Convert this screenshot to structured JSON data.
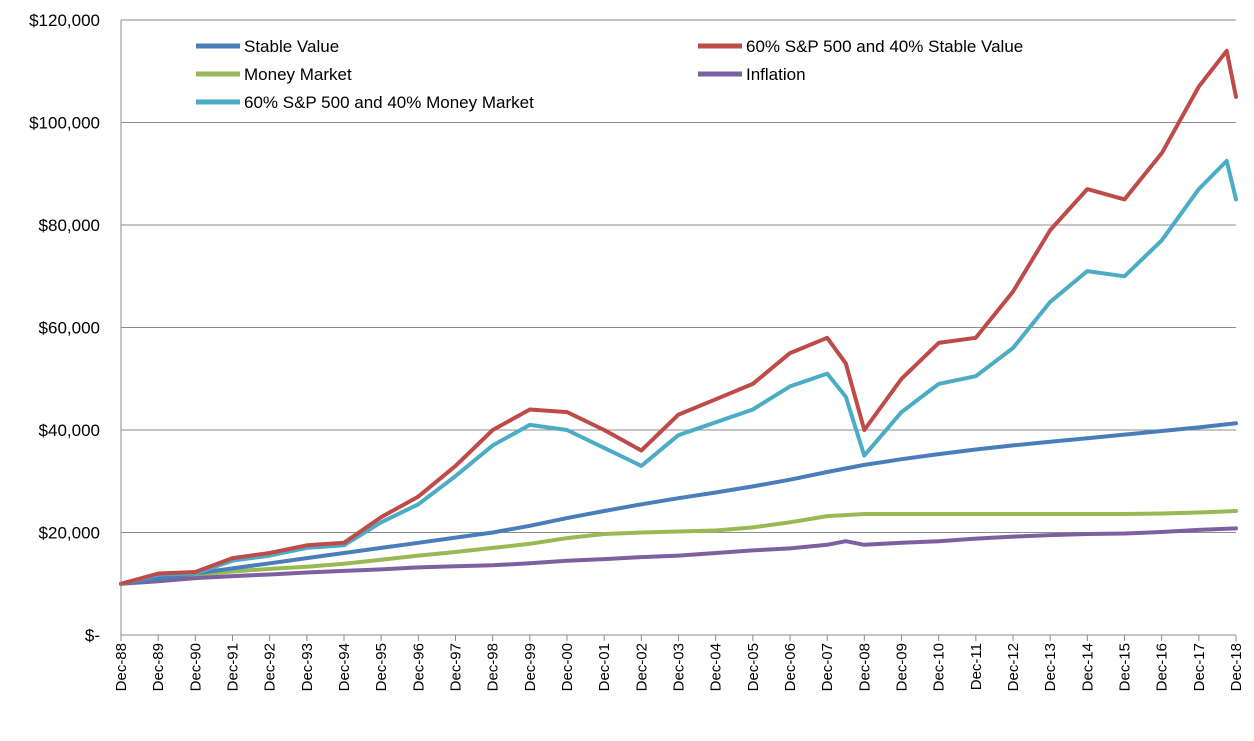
{
  "chart_data": {
    "type": "line",
    "title": "",
    "xlabel": "",
    "ylabel": "",
    "x_start": "Dec-88",
    "x_end": "Dec-18",
    "x_tick_labels": [
      "Dec-88",
      "Dec-89",
      "Dec-90",
      "Dec-91",
      "Dec-92",
      "Dec-93",
      "Dec-94",
      "Dec-95",
      "Dec-96",
      "Dec-97",
      "Dec-98",
      "Dec-99",
      "Dec-00",
      "Dec-01",
      "Dec-02",
      "Dec-03",
      "Dec-04",
      "Dec-05",
      "Dec-06",
      "Dec-07",
      "Dec-08",
      "Dec-09",
      "Dec-10",
      "Dec-11",
      "Dec-12",
      "Dec-13",
      "Dec-14",
      "Dec-15",
      "Dec-16",
      "Dec-17",
      "Dec-18"
    ],
    "ylim": [
      0,
      120000
    ],
    "y_ticks": [
      0,
      20000,
      40000,
      60000,
      80000,
      100000,
      120000
    ],
    "y_tick_labels": [
      "$-",
      "$20,000",
      "$40,000",
      "$60,000",
      "$80,000",
      "$100,000",
      "$120,000"
    ],
    "grid": "horizontal",
    "legend_placement": "top-left",
    "series": [
      {
        "name": "Stable Value",
        "color": "#4a7ebb",
        "points": [
          [
            "Dec-88",
            10000
          ],
          [
            "Dec-89",
            11000
          ],
          [
            "Dec-90",
            12000
          ],
          [
            "Dec-91",
            13000
          ],
          [
            "Dec-92",
            14000
          ],
          [
            "Dec-93",
            15000
          ],
          [
            "Dec-94",
            16000
          ],
          [
            "Dec-95",
            17000
          ],
          [
            "Dec-96",
            18000
          ],
          [
            "Dec-97",
            19000
          ],
          [
            "Dec-98",
            20000
          ],
          [
            "Dec-99",
            21300
          ],
          [
            "Dec-00",
            22800
          ],
          [
            "Dec-01",
            24200
          ],
          [
            "Dec-02",
            25500
          ],
          [
            "Dec-03",
            26700
          ],
          [
            "Dec-04",
            27800
          ],
          [
            "Dec-05",
            29000
          ],
          [
            "Dec-06",
            30300
          ],
          [
            "Dec-07",
            31800
          ],
          [
            "Dec-08",
            33200
          ],
          [
            "Dec-09",
            34300
          ],
          [
            "Dec-10",
            35300
          ],
          [
            "Dec-11",
            36200
          ],
          [
            "Dec-12",
            37000
          ],
          [
            "Dec-13",
            37700
          ],
          [
            "Dec-14",
            38400
          ],
          [
            "Dec-15",
            39100
          ],
          [
            "Dec-16",
            39800
          ],
          [
            "Dec-17",
            40500
          ],
          [
            "Dec-18",
            41300
          ]
        ]
      },
      {
        "name": "60% S&P 500 and 40% Stable Value",
        "color": "#be4b48",
        "points": [
          [
            "Dec-88",
            10000
          ],
          [
            "Dec-89",
            12000
          ],
          [
            "Dec-90",
            12300
          ],
          [
            "Dec-91",
            15000
          ],
          [
            "Dec-92",
            16000
          ],
          [
            "Dec-93",
            17500
          ],
          [
            "Dec-94",
            18000
          ],
          [
            "Dec-95",
            23000
          ],
          [
            "Dec-96",
            27000
          ],
          [
            "Dec-97",
            33000
          ],
          [
            "Dec-98",
            40000
          ],
          [
            "Dec-99",
            44000
          ],
          [
            "Dec-00",
            43500
          ],
          [
            "Dec-01",
            40000
          ],
          [
            "Dec-02",
            36000
          ],
          [
            "Dec-03",
            43000
          ],
          [
            "Dec-04",
            46000
          ],
          [
            "Dec-05",
            49000
          ],
          [
            "Dec-06",
            55000
          ],
          [
            "Dec-07",
            58000
          ],
          [
            "Jun-08",
            53000
          ],
          [
            "Dec-08",
            40000
          ],
          [
            "Dec-09",
            50000
          ],
          [
            "Dec-10",
            57000
          ],
          [
            "Dec-11",
            58000
          ],
          [
            "Dec-12",
            67000
          ],
          [
            "Dec-13",
            79000
          ],
          [
            "Dec-14",
            87000
          ],
          [
            "Dec-15",
            85000
          ],
          [
            "Dec-16",
            94000
          ],
          [
            "Dec-17",
            107000
          ],
          [
            "Sep-18",
            114000
          ],
          [
            "Dec-18",
            105000
          ]
        ]
      },
      {
        "name": "Money Market",
        "color": "#98b954",
        "points": [
          [
            "Dec-88",
            10000
          ],
          [
            "Dec-89",
            10900
          ],
          [
            "Dec-90",
            11700
          ],
          [
            "Dec-91",
            12400
          ],
          [
            "Dec-92",
            12900
          ],
          [
            "Dec-93",
            13300
          ],
          [
            "Dec-94",
            13900
          ],
          [
            "Dec-95",
            14700
          ],
          [
            "Dec-96",
            15500
          ],
          [
            "Dec-97",
            16200
          ],
          [
            "Dec-98",
            17000
          ],
          [
            "Dec-99",
            17800
          ],
          [
            "Dec-00",
            18900
          ],
          [
            "Dec-01",
            19700
          ],
          [
            "Dec-02",
            20000
          ],
          [
            "Dec-03",
            20200
          ],
          [
            "Dec-04",
            20400
          ],
          [
            "Dec-05",
            21000
          ],
          [
            "Dec-06",
            22000
          ],
          [
            "Dec-07",
            23200
          ],
          [
            "Dec-08",
            23600
          ],
          [
            "Dec-09",
            23600
          ],
          [
            "Dec-10",
            23600
          ],
          [
            "Dec-11",
            23600
          ],
          [
            "Dec-12",
            23600
          ],
          [
            "Dec-13",
            23600
          ],
          [
            "Dec-14",
            23600
          ],
          [
            "Dec-15",
            23600
          ],
          [
            "Dec-16",
            23700
          ],
          [
            "Dec-17",
            23900
          ],
          [
            "Dec-18",
            24200
          ]
        ]
      },
      {
        "name": "Inflation",
        "color": "#7d60a0",
        "points": [
          [
            "Dec-88",
            10000
          ],
          [
            "Dec-89",
            10500
          ],
          [
            "Dec-90",
            11100
          ],
          [
            "Dec-91",
            11500
          ],
          [
            "Dec-92",
            11800
          ],
          [
            "Dec-93",
            12200
          ],
          [
            "Dec-94",
            12500
          ],
          [
            "Dec-95",
            12800
          ],
          [
            "Dec-96",
            13200
          ],
          [
            "Dec-97",
            13400
          ],
          [
            "Dec-98",
            13600
          ],
          [
            "Dec-99",
            14000
          ],
          [
            "Dec-00",
            14500
          ],
          [
            "Dec-01",
            14800
          ],
          [
            "Dec-02",
            15200
          ],
          [
            "Dec-03",
            15500
          ],
          [
            "Dec-04",
            16000
          ],
          [
            "Dec-05",
            16500
          ],
          [
            "Dec-06",
            16900
          ],
          [
            "Dec-07",
            17600
          ],
          [
            "Jun-08",
            18300
          ],
          [
            "Dec-08",
            17600
          ],
          [
            "Dec-09",
            18000
          ],
          [
            "Dec-10",
            18300
          ],
          [
            "Dec-11",
            18800
          ],
          [
            "Dec-12",
            19200
          ],
          [
            "Dec-13",
            19500
          ],
          [
            "Dec-14",
            19700
          ],
          [
            "Dec-15",
            19800
          ],
          [
            "Dec-16",
            20100
          ],
          [
            "Dec-17",
            20500
          ],
          [
            "Dec-18",
            20800
          ]
        ]
      },
      {
        "name": "60% S&P 500 and 40% Money Market",
        "color": "#4bacc6",
        "points": [
          [
            "Dec-88",
            10000
          ],
          [
            "Dec-89",
            11800
          ],
          [
            "Dec-90",
            12000
          ],
          [
            "Dec-91",
            14500
          ],
          [
            "Dec-92",
            15500
          ],
          [
            "Dec-93",
            17000
          ],
          [
            "Dec-94",
            17500
          ],
          [
            "Dec-95",
            22000
          ],
          [
            "Dec-96",
            25500
          ],
          [
            "Dec-97",
            31000
          ],
          [
            "Dec-98",
            37000
          ],
          [
            "Dec-99",
            41000
          ],
          [
            "Dec-00",
            40000
          ],
          [
            "Dec-01",
            36500
          ],
          [
            "Dec-02",
            33000
          ],
          [
            "Dec-03",
            39000
          ],
          [
            "Dec-04",
            41500
          ],
          [
            "Dec-05",
            44000
          ],
          [
            "Dec-06",
            48500
          ],
          [
            "Dec-07",
            51000
          ],
          [
            "Jun-08",
            46500
          ],
          [
            "Dec-08",
            35000
          ],
          [
            "Dec-09",
            43500
          ],
          [
            "Dec-10",
            49000
          ],
          [
            "Dec-11",
            50500
          ],
          [
            "Dec-12",
            56000
          ],
          [
            "Dec-13",
            65000
          ],
          [
            "Dec-14",
            71000
          ],
          [
            "Dec-15",
            70000
          ],
          [
            "Dec-16",
            77000
          ],
          [
            "Dec-17",
            87000
          ],
          [
            "Sep-18",
            92500
          ],
          [
            "Dec-18",
            85000
          ]
        ]
      }
    ]
  }
}
